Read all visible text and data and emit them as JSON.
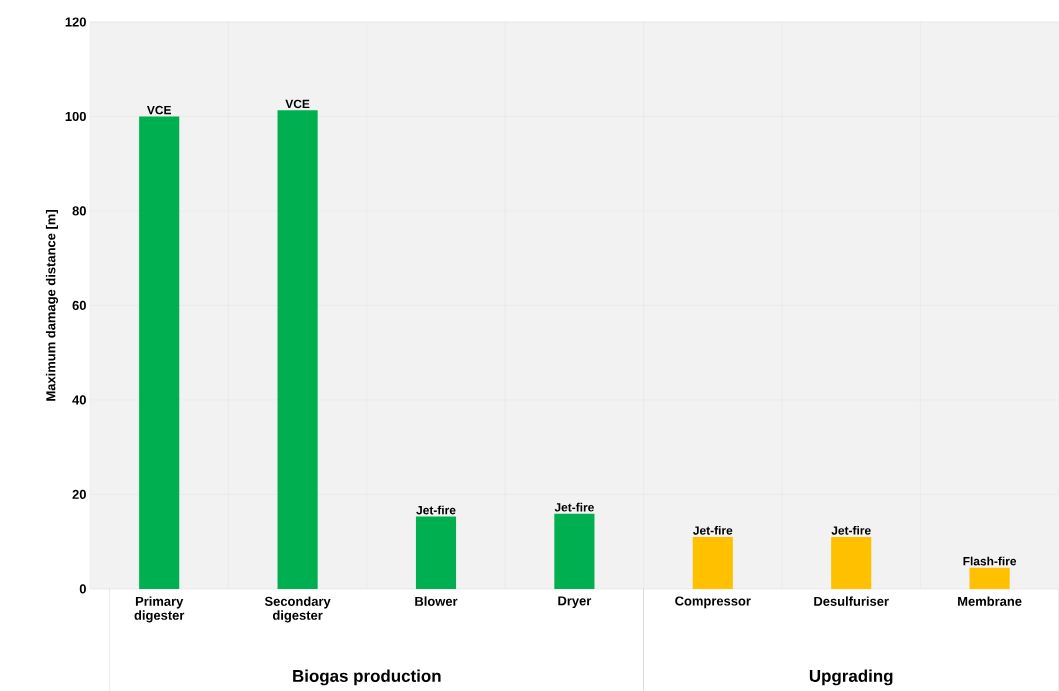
{
  "chart_data": {
    "type": "bar",
    "ylabel": "Maximum damage distance [m]",
    "categories": [
      "Primary digester",
      "Secondary digester",
      "Blower",
      "Dryer",
      "Compressor",
      "Desulfuriser",
      "Membrane"
    ],
    "values": [
      100,
      101.3,
      15.3,
      15.9,
      11,
      11,
      4.5
    ],
    "value_labels": [
      "VCE",
      "VCE",
      "Jet-fire",
      "Jet-fire",
      "Jet-fire",
      "Jet-fire",
      "Flash-fire"
    ],
    "colors": [
      "#00b050",
      "#00b050",
      "#00b050",
      "#00b050",
      "#ffc000",
      "#ffc000",
      "#ffc000"
    ],
    "annotations": [
      "Biogas production",
      "Upgrading"
    ],
    "ylim": [
      0,
      120
    ],
    "yticks": [
      0,
      20,
      40,
      60,
      80,
      100,
      120
    ],
    "grid": true
  }
}
